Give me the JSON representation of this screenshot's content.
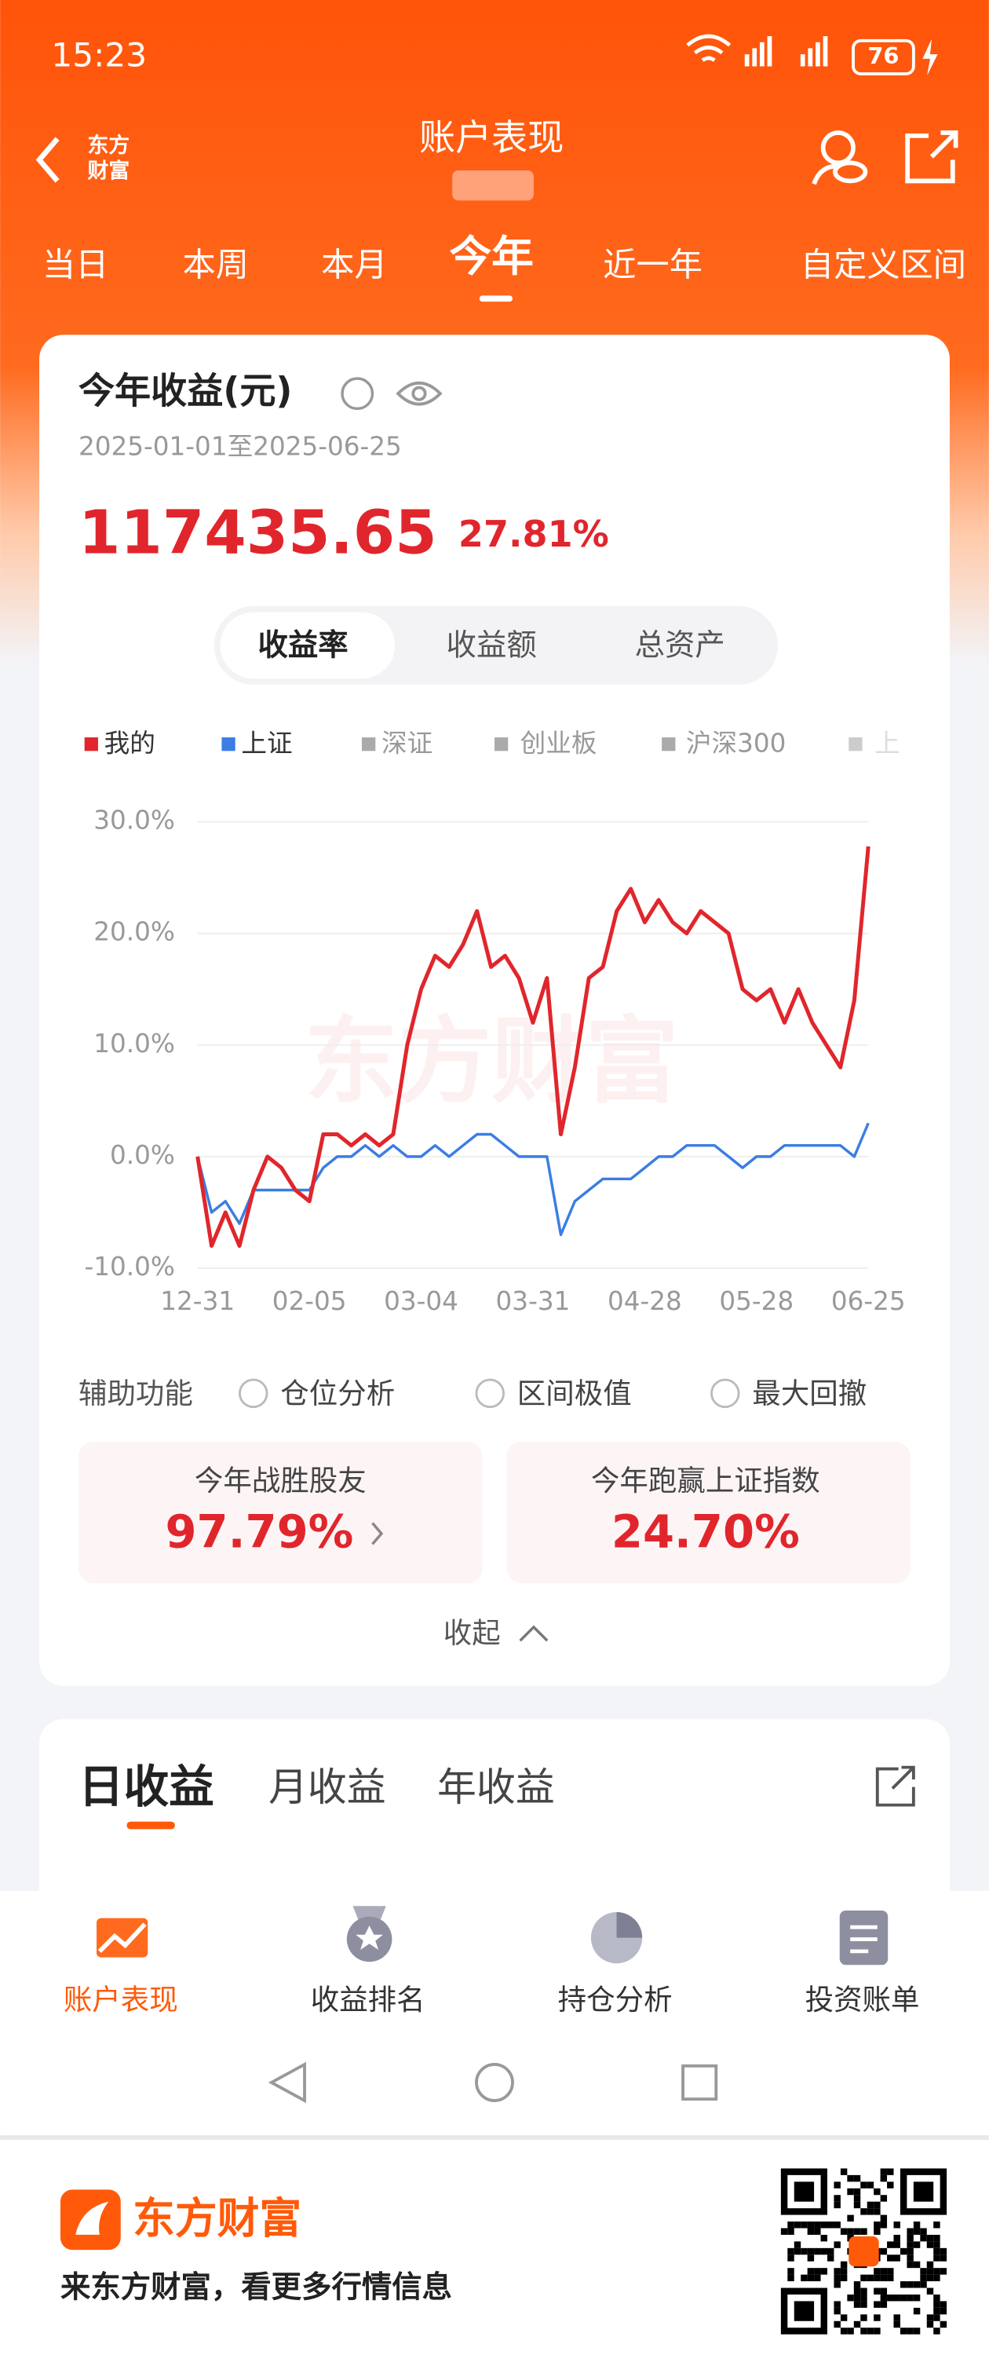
{
  "status_bar": {
    "time": "15:23",
    "battery": "76"
  },
  "header": {
    "logo": [
      "东方",
      "财富"
    ],
    "title": "账户表现"
  },
  "period_tabs": [
    "当日",
    "本周",
    "本月",
    "今年",
    "近一年",
    "自定义区间"
  ],
  "summary": {
    "title": "今年收益(元)",
    "date_range": "2025-01-01至2025-06-25",
    "amount": "117435.65",
    "rate": "27.81%"
  },
  "toggle": [
    "收益率",
    "收益额",
    "总资产"
  ],
  "legend_other": [
    "深证",
    "创业板",
    "沪深300",
    "上"
  ],
  "watermark": "东方财富",
  "chart_data": {
    "type": "line",
    "categories": [
      "12-31",
      null,
      null,
      null,
      null,
      null,
      null,
      null,
      "02-05",
      null,
      null,
      null,
      null,
      null,
      null,
      null,
      "03-04",
      null,
      null,
      null,
      null,
      null,
      null,
      null,
      "03-31",
      null,
      null,
      null,
      null,
      null,
      null,
      null,
      "04-28",
      null,
      null,
      null,
      null,
      null,
      null,
      null,
      "05-28",
      null,
      null,
      null,
      null,
      null,
      null,
      null,
      "06-25"
    ],
    "series": [
      {
        "name": "我的",
        "color": "#e0262c",
        "values": [
          0,
          -8,
          -5,
          -8,
          -3,
          0,
          -1,
          -3,
          -4,
          2,
          2,
          1,
          2,
          1,
          2,
          10,
          15,
          18,
          17,
          19,
          22,
          17,
          18,
          16,
          12,
          16,
          2,
          8,
          16,
          17,
          22,
          24,
          21,
          23,
          21,
          20,
          22,
          21,
          20,
          15,
          14,
          15,
          12,
          15,
          12,
          10,
          8,
          14,
          27.8
        ]
      },
      {
        "name": "上证",
        "color": "#3b7de3",
        "values": [
          0,
          -5,
          -4,
          -6,
          -3,
          -3,
          -3,
          -3,
          -3,
          -1,
          0,
          0,
          1,
          0,
          1,
          0,
          0,
          1,
          0,
          1,
          2,
          2,
          1,
          0,
          0,
          0,
          -7,
          -4,
          -3,
          -2,
          -2,
          -2,
          -1,
          0,
          0,
          1,
          1,
          1,
          0,
          -1,
          0,
          0,
          1,
          1,
          1,
          1,
          1,
          0,
          3
        ]
      }
    ],
    "ylim": [
      -10,
      30
    ],
    "yticks": [
      {
        "value": -10,
        "label": "-10.0%"
      },
      {
        "value": 0,
        "label": "0.0%"
      },
      {
        "value": 10,
        "label": "10.0%"
      },
      {
        "value": 20,
        "label": "20.0%"
      },
      {
        "value": 30,
        "label": "30.0%"
      }
    ],
    "grid": true
  },
  "aux": {
    "label": "辅助功能",
    "options": [
      "仓位分析",
      "区间极值",
      "最大回撤"
    ]
  },
  "stats": [
    {
      "label": "今年战胜股友",
      "value": "97.79%"
    },
    {
      "label": "今年跑赢上证指数",
      "value": "24.70%"
    }
  ],
  "collapse": "收起",
  "income_tabs": [
    "日收益",
    "月收益",
    "年收益"
  ],
  "bottom_nav": [
    "账户表现",
    "收益排名",
    "持仓分析",
    "投资账单"
  ],
  "footer": {
    "brand": "东方财富",
    "slogan": "来东方财富，看更多行情信息"
  }
}
